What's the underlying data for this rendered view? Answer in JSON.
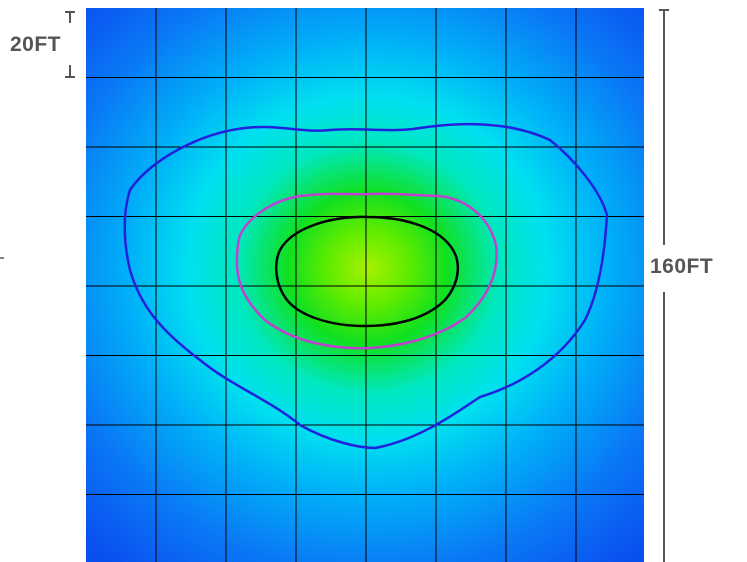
{
  "dimensions": {
    "grid_cell_size": "20FT",
    "total_extent": "160FT"
  },
  "grid": {
    "columns": 8,
    "rows": 8
  },
  "colors": {
    "field_edge": "#0a50f0",
    "field_mid": "#00e8e8",
    "field_core": "#a8f000",
    "contour_outer": "#2222dd",
    "contour_middle": "#c040d0",
    "contour_inner": "#000000",
    "grid_line": "#000000",
    "dimension_line": "#555555"
  }
}
